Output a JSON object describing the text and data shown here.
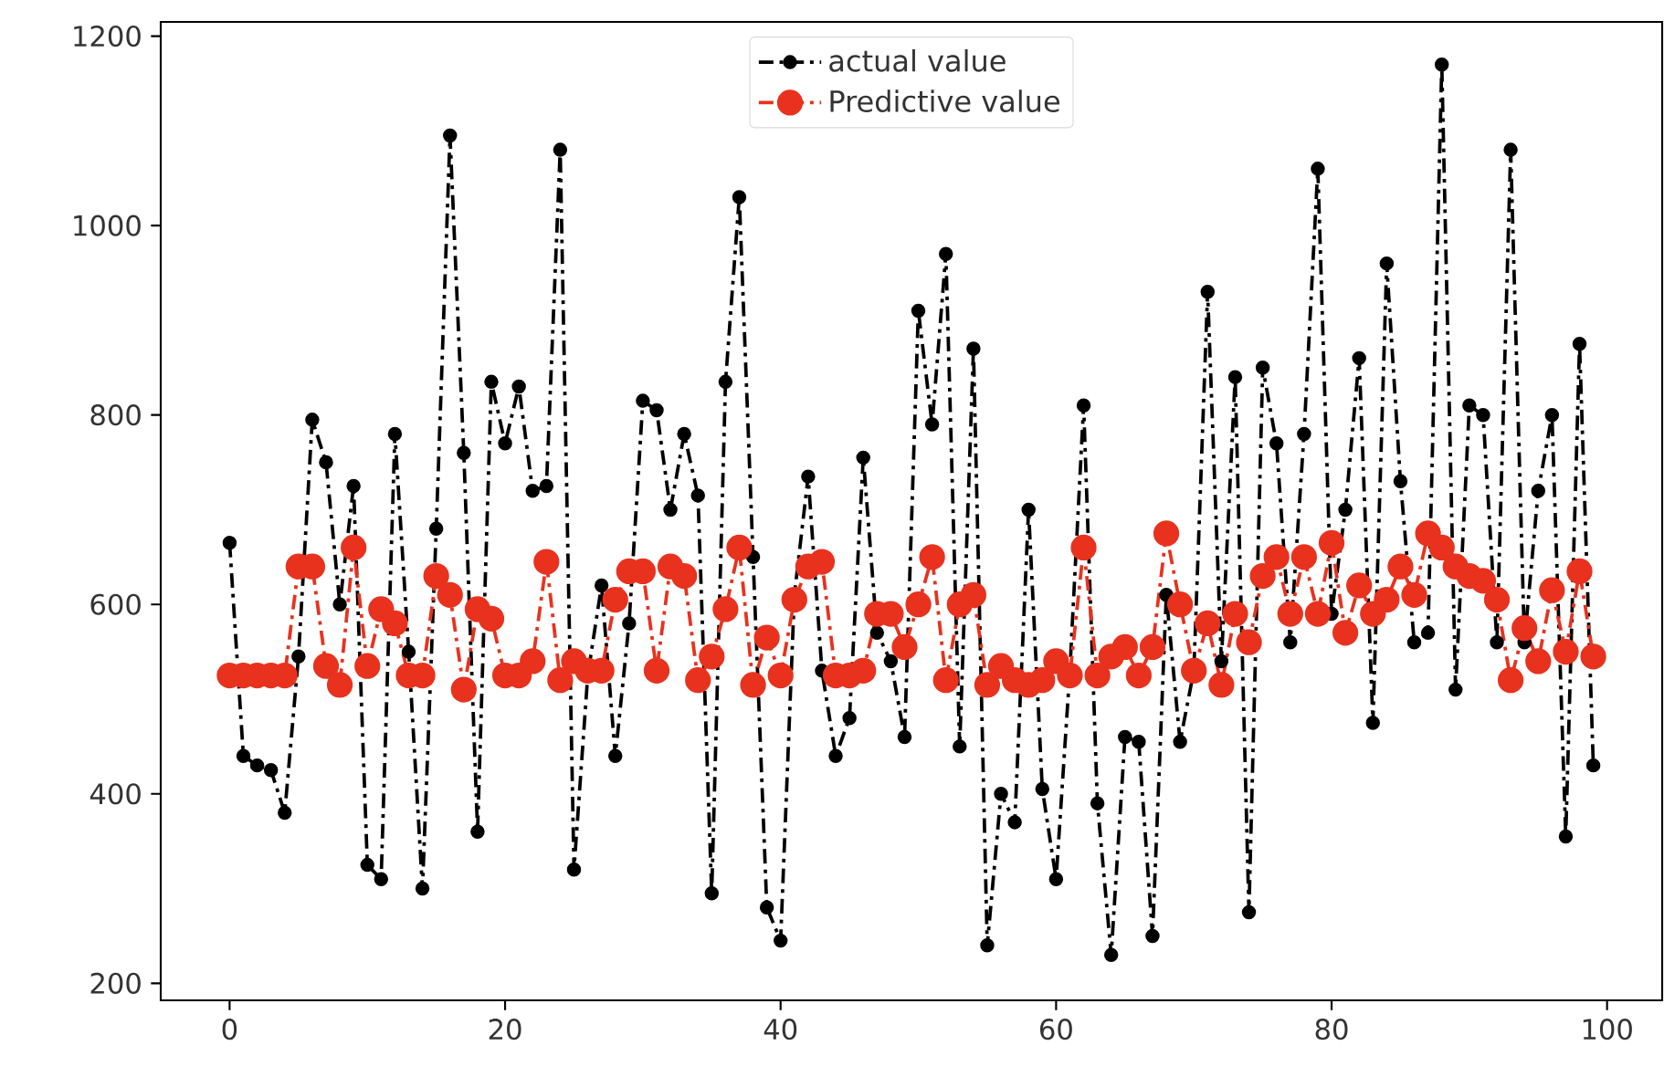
{
  "chart_data": {
    "type": "line",
    "x": [
      0,
      1,
      2,
      3,
      4,
      5,
      6,
      7,
      8,
      9,
      10,
      11,
      12,
      13,
      14,
      15,
      16,
      17,
      18,
      19,
      20,
      21,
      22,
      23,
      24,
      25,
      26,
      27,
      28,
      29,
      30,
      31,
      32,
      33,
      34,
      35,
      36,
      37,
      38,
      39,
      40,
      41,
      42,
      43,
      44,
      45,
      46,
      47,
      48,
      49,
      50,
      51,
      52,
      53,
      54,
      55,
      56,
      57,
      58,
      59,
      60,
      61,
      62,
      63,
      64,
      65,
      66,
      67,
      68,
      69,
      70,
      71,
      72,
      73,
      74,
      75,
      76,
      77,
      78,
      79,
      80,
      81,
      82,
      83,
      84,
      85,
      86,
      87,
      88,
      89,
      90,
      91,
      92,
      93,
      94,
      95,
      96,
      97,
      98,
      99
    ],
    "series": [
      {
        "name": "actual value",
        "color": "#000000",
        "marker": "circle",
        "line_style": "dashdot",
        "values": [
          665,
          440,
          430,
          425,
          380,
          545,
          795,
          750,
          600,
          725,
          325,
          310,
          780,
          550,
          300,
          680,
          1095,
          760,
          360,
          835,
          770,
          830,
          720,
          725,
          1080,
          320,
          525,
          620,
          440,
          580,
          815,
          805,
          700,
          780,
          715,
          295,
          835,
          1030,
          650,
          280,
          245,
          610,
          735,
          530,
          440,
          480,
          755,
          570,
          540,
          460,
          910,
          790,
          970,
          450,
          870,
          240,
          400,
          370,
          700,
          405,
          310,
          530,
          810,
          390,
          230,
          460,
          455,
          250,
          610,
          455,
          530,
          930,
          540,
          840,
          275,
          850,
          770,
          560,
          780,
          1060,
          590,
          700,
          860,
          475,
          960,
          730,
          560,
          570,
          1170,
          510,
          810,
          800,
          560,
          1080,
          560,
          720,
          800,
          355,
          875,
          430
        ]
      },
      {
        "name": "Predictive value",
        "color": "#e8321e",
        "marker": "circle",
        "line_style": "dashdot",
        "values": [
          525,
          525,
          525,
          525,
          525,
          640,
          640,
          535,
          515,
          660,
          535,
          595,
          580,
          525,
          525,
          630,
          610,
          510,
          595,
          585,
          525,
          525,
          540,
          645,
          520,
          540,
          530,
          530,
          605,
          635,
          635,
          530,
          640,
          630,
          520,
          545,
          595,
          660,
          515,
          565,
          525,
          605,
          640,
          645,
          525,
          525,
          530,
          590,
          590,
          555,
          600,
          650,
          520,
          600,
          610,
          515,
          535,
          520,
          515,
          520,
          540,
          525,
          660,
          525,
          545,
          555,
          525,
          555,
          675,
          600,
          530,
          580,
          515,
          590,
          560,
          630,
          650,
          590,
          650,
          590,
          665,
          570,
          620,
          590,
          605,
          640,
          610,
          675,
          660,
          640,
          630,
          625,
          605,
          520,
          575,
          540,
          615,
          550,
          635,
          545
        ]
      }
    ],
    "xlim": [
      -5,
      104
    ],
    "ylim": [
      182,
      1215
    ],
    "xticks": [
      0,
      20,
      40,
      60,
      80,
      100
    ],
    "yticks": [
      200,
      400,
      600,
      800,
      1000,
      1200
    ],
    "legend": "top",
    "grid": false
  }
}
